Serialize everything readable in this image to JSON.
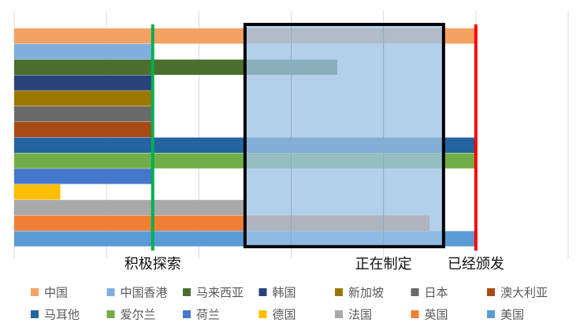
{
  "chart_data": {
    "type": "bar",
    "orientation": "horizontal",
    "stacked": false,
    "categories": [
      "中国",
      "中国香港",
      "马来西亚",
      "韩国",
      "新加坡",
      "日本",
      "澳大利亚",
      "马耳他",
      "爱尔兰",
      "荷兰",
      "德国",
      "法国",
      "英国",
      "美国"
    ],
    "values": [
      100,
      30,
      70,
      30,
      30,
      30,
      30,
      100,
      100,
      30,
      10,
      50,
      90,
      100
    ],
    "colors": [
      "#F4A262",
      "#7FAFDD",
      "#4A6F2E",
      "#27437A",
      "#9A7800",
      "#6A6A6A",
      "#A64B14",
      "#2464A0",
      "#72AE47",
      "#4577CB",
      "#FDBF00",
      "#A9A9A9",
      "#EF7F35",
      "#5A9BD5"
    ],
    "xlim": [
      0,
      120
    ],
    "grid": true,
    "legend_position": "bottom",
    "stage_labels": [
      {
        "text": "积极探索",
        "value": 30
      },
      {
        "text": "正在制定",
        "value": 80
      },
      {
        "text": "已经颁发",
        "value": 100
      }
    ],
    "markers": [
      {
        "value": 30,
        "color": "#00B050"
      },
      {
        "value": 100,
        "color": "#FF0000"
      }
    ],
    "highlight": {
      "from": 50,
      "to": 93,
      "fill": "#9DC3E6",
      "border": "#000000"
    }
  }
}
